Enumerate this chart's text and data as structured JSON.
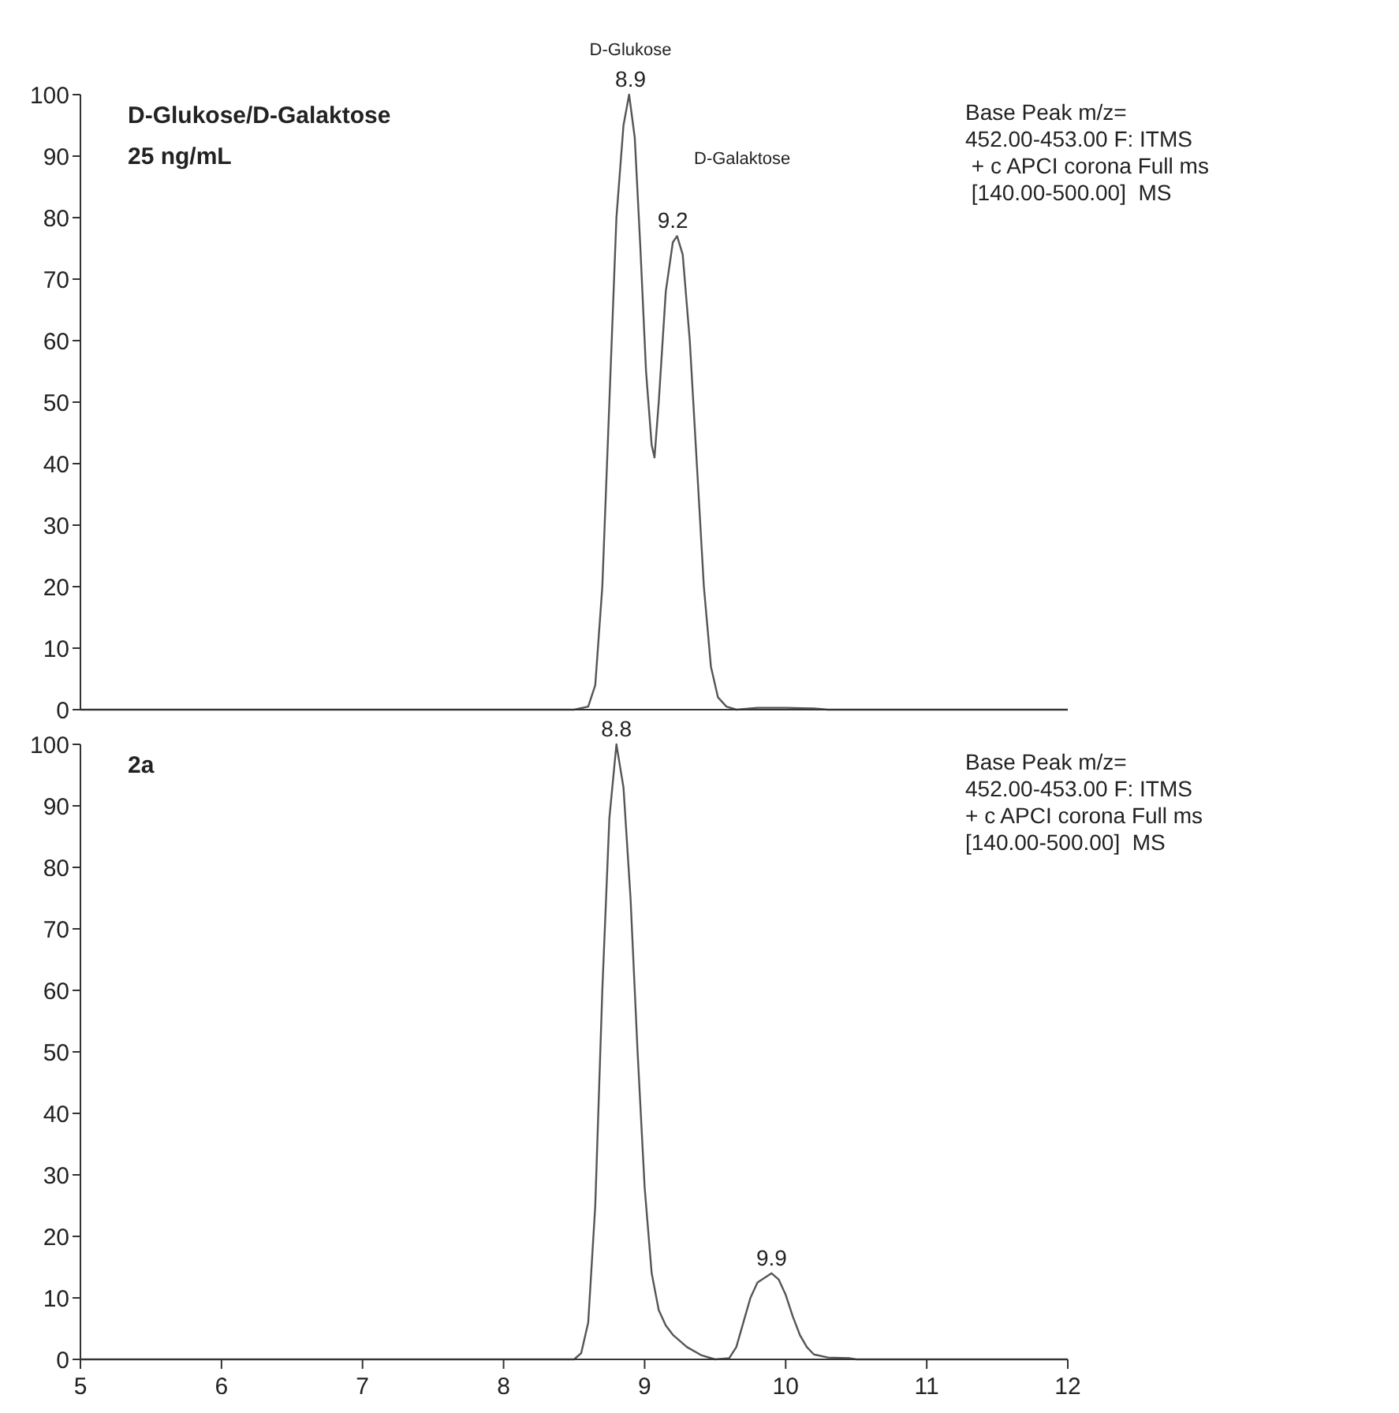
{
  "chart_data": [
    {
      "type": "line",
      "title": "D-Glukose/D-Galaktose",
      "subtitle": "25 ng/mL",
      "xlim": [
        5,
        12
      ],
      "ylim": [
        0,
        100
      ],
      "yticks": [
        0,
        10,
        20,
        30,
        40,
        50,
        60,
        70,
        80,
        90,
        100
      ],
      "tick_labels": "y",
      "series": [
        {
          "color": "#555555",
          "x": [
            5,
            8.5,
            8.6,
            8.65,
            8.7,
            8.75,
            8.8,
            8.85,
            8.89,
            8.93,
            8.97,
            9.01,
            9.05,
            9.07,
            9.1,
            9.15,
            9.2,
            9.23,
            9.27,
            9.32,
            9.37,
            9.42,
            9.47,
            9.52,
            9.58,
            9.65,
            9.8,
            10.0,
            10.2,
            10.3,
            12
          ],
          "values": [
            0,
            0,
            0.5,
            4,
            20,
            50,
            80,
            95,
            100,
            93,
            75,
            55,
            43,
            41,
            50,
            68,
            76,
            77,
            74,
            60,
            40,
            20,
            7,
            2,
            0.5,
            0,
            0.3,
            0.3,
            0.2,
            0,
            0
          ]
        }
      ],
      "annotations": [
        {
          "text": "8.9",
          "x": 8.9,
          "y": 100
        },
        {
          "text": "D-Glukose",
          "x": 8.9,
          "y": 100
        },
        {
          "text": "9.2",
          "x": 9.2,
          "y": 77
        },
        "D-Galaktose",
        "Base Peak m/z=",
        "452.00-453.00 F: ITMS",
        " + c APCI corona Full ms",
        " [140.00-500.00]  MS"
      ]
    },
    {
      "type": "line",
      "title": "2a",
      "xlim": [
        5,
        12
      ],
      "xticks": [
        5,
        6,
        7,
        8,
        9,
        10,
        11,
        12
      ],
      "ylim": [
        0,
        100
      ],
      "yticks": [
        0,
        10,
        20,
        30,
        40,
        50,
        60,
        70,
        80,
        90,
        100
      ],
      "series": [
        {
          "color": "#555555",
          "x": [
            5,
            8.5,
            8.55,
            8.6,
            8.65,
            8.7,
            8.75,
            8.8,
            8.85,
            8.9,
            8.95,
            9.0,
            9.05,
            9.1,
            9.15,
            9.2,
            9.3,
            9.4,
            9.5,
            9.6,
            9.65,
            9.7,
            9.75,
            9.8,
            9.9,
            9.95,
            10.0,
            10.05,
            10.1,
            10.15,
            10.2,
            10.3,
            10.45,
            10.5,
            12
          ],
          "values": [
            0,
            0,
            1,
            6,
            25,
            60,
            88,
            100,
            93,
            75,
            50,
            28,
            14,
            8,
            5.5,
            4,
            2,
            0.7,
            0,
            0.2,
            2,
            6,
            10,
            12.5,
            14,
            13,
            10.5,
            7,
            4,
            2,
            0.8,
            0.3,
            0.2,
            0,
            0
          ]
        }
      ],
      "annotations": [
        {
          "text": "8.8",
          "x": 8.8,
          "y": 100
        },
        {
          "text": "9.9",
          "x": 9.9,
          "y": 14
        },
        "Base Peak m/z=",
        "452.00-453.00 F: ITMS",
        "+ c APCI corona Full ms",
        "[140.00-500.00]  MS"
      ]
    }
  ]
}
